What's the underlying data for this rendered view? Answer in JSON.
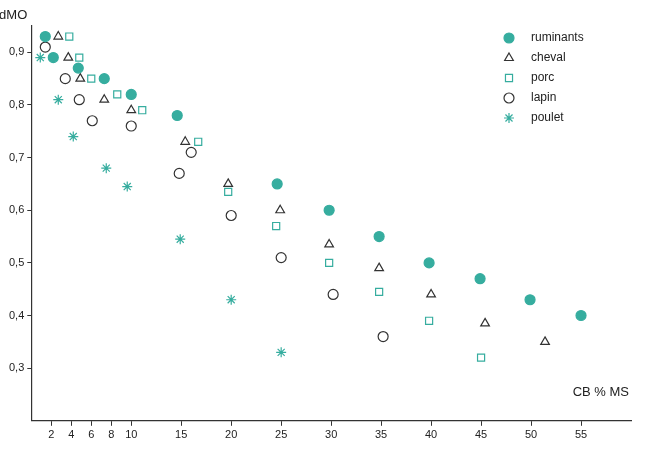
{
  "chart_data": {
    "type": "scatter",
    "x_label": "CB % MS",
    "y_label": "dMO",
    "xlim": [
      0,
      60
    ],
    "xticks": [
      2,
      4,
      6,
      8,
      10,
      15,
      20,
      25,
      30,
      35,
      40,
      45,
      50,
      55
    ],
    "ylim": [
      0.2,
      0.95
    ],
    "yticks": [
      {
        "value": 0.3,
        "label": "0,3"
      },
      {
        "value": 0.4,
        "label": "0,4"
      },
      {
        "value": 0.5,
        "label": "0,5"
      },
      {
        "value": 0.6,
        "label": "0,6"
      },
      {
        "value": 0.7,
        "label": "0,7"
      },
      {
        "value": 0.8,
        "label": "0,8"
      },
      {
        "value": 0.9,
        "label": "0,9"
      }
    ],
    "grid": false,
    "legend": "upper right",
    "series": [
      {
        "name": "ruminants",
        "color": "#36ad9f",
        "marker": "circle",
        "x": [
          1.4,
          2.2,
          4.7,
          7.3,
          10,
          14.6,
          24.6,
          29.8,
          34.8,
          39.8,
          44.9,
          49.9,
          55
        ],
        "values": [
          0.93,
          0.89,
          0.87,
          0.85,
          0.82,
          0.78,
          0.65,
          0.6,
          0.55,
          0.5,
          0.47,
          0.43,
          0.4
        ]
      },
      {
        "name": "cheval",
        "color": "#333333",
        "marker": "open_triangle",
        "x": [
          2.7,
          3.7,
          4.9,
          7.3,
          10,
          15.4,
          19.7,
          24.9,
          29.8,
          34.8,
          40,
          45.4,
          51.4
        ],
        "values": [
          0.93,
          0.89,
          0.85,
          0.81,
          0.79,
          0.73,
          0.65,
          0.6,
          0.535,
          0.49,
          0.44,
          0.385,
          0.35
        ]
      },
      {
        "name": "porc",
        "color": "#36ad9f",
        "marker": "open_square",
        "x": [
          3.8,
          4.8,
          6,
          8.6,
          11.1,
          16.7,
          19.7,
          24.5,
          29.8,
          34.8,
          39.8,
          45
        ],
        "values": [
          0.93,
          0.89,
          0.85,
          0.82,
          0.79,
          0.73,
          0.635,
          0.57,
          0.5,
          0.445,
          0.39,
          0.32
        ]
      },
      {
        "name": "lapin",
        "color": "#333333",
        "marker": "open_circle",
        "x": [
          1.4,
          3.4,
          4.8,
          6.1,
          10,
          14.8,
          16,
          20,
          25,
          30.2,
          35.2
        ],
        "values": [
          0.91,
          0.85,
          0.81,
          0.77,
          0.76,
          0.67,
          0.71,
          0.59,
          0.51,
          0.44,
          0.36
        ]
      },
      {
        "name": "poulet",
        "color": "#36ad9f",
        "marker": "star",
        "x": [
          0.9,
          2.7,
          4.2,
          7.5,
          9.6,
          14.9,
          20,
          25
        ],
        "values": [
          0.89,
          0.81,
          0.74,
          0.68,
          0.645,
          0.545,
          0.43,
          0.33
        ]
      }
    ]
  }
}
